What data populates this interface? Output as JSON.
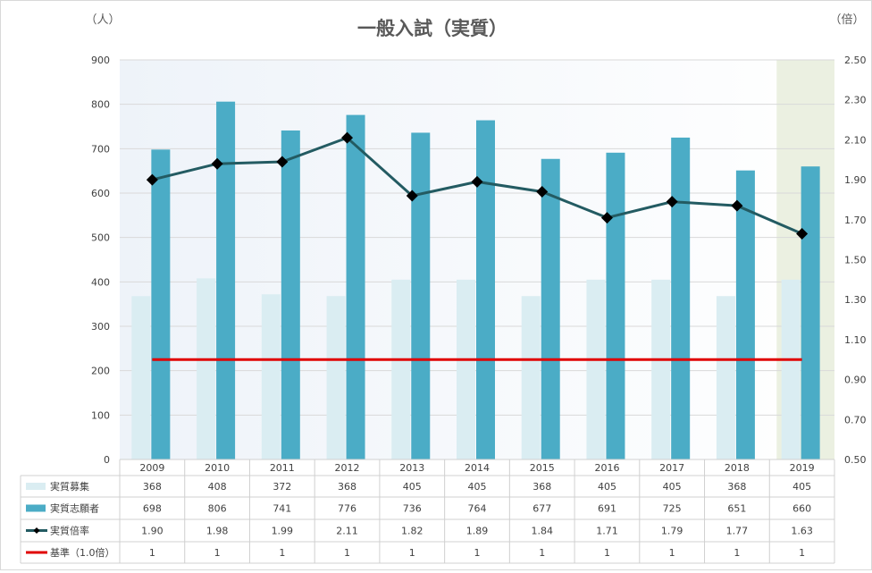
{
  "chart_data": {
    "type": "bar",
    "title": "一般入試（実質）",
    "left_unit": "（人）",
    "right_unit": "（倍）",
    "categories": [
      "2009",
      "2010",
      "2011",
      "2012",
      "2013",
      "2014",
      "2015",
      "2016",
      "2017",
      "2018",
      "2019"
    ],
    "ylim": [
      0,
      900
    ],
    "yticks": [
      "0",
      "100",
      "200",
      "300",
      "400",
      "500",
      "600",
      "700",
      "800",
      "900"
    ],
    "y2lim": [
      0.5,
      2.5
    ],
    "y2ticks": [
      "0.50",
      "0.70",
      "0.90",
      "1.10",
      "1.30",
      "1.50",
      "1.70",
      "1.90",
      "2.10",
      "2.30",
      "2.50"
    ],
    "highlight_category": "2019",
    "grid": true,
    "series": [
      {
        "name": "実質募集",
        "kind": "bar",
        "axis": "left",
        "color": "#daedf2",
        "values": [
          368,
          408,
          372,
          368,
          405,
          405,
          368,
          405,
          405,
          368,
          405
        ],
        "labels": [
          "368",
          "408",
          "372",
          "368",
          "405",
          "405",
          "368",
          "405",
          "405",
          "368",
          "405"
        ]
      },
      {
        "name": "実質志願者",
        "kind": "bar",
        "axis": "left",
        "color": "#4bacc6",
        "values": [
          698,
          806,
          741,
          776,
          736,
          764,
          677,
          691,
          725,
          651,
          660
        ],
        "labels": [
          "698",
          "806",
          "741",
          "776",
          "736",
          "764",
          "677",
          "691",
          "725",
          "651",
          "660"
        ]
      },
      {
        "name": "実質倍率",
        "kind": "line",
        "axis": "right",
        "color": "#235b62",
        "values": [
          1.9,
          1.98,
          1.99,
          2.11,
          1.82,
          1.89,
          1.84,
          1.71,
          1.79,
          1.77,
          1.63
        ],
        "labels": [
          "1.90",
          "1.98",
          "1.99",
          "2.11",
          "1.82",
          "1.89",
          "1.84",
          "1.71",
          "1.79",
          "1.77",
          "1.63"
        ]
      },
      {
        "name": "基準（1.0倍）",
        "kind": "line",
        "axis": "right",
        "color": "#e00000",
        "values": [
          1,
          1,
          1,
          1,
          1,
          1,
          1,
          1,
          1,
          1,
          1
        ],
        "labels": [
          "1",
          "1",
          "1",
          "1",
          "1",
          "1",
          "1",
          "1",
          "1",
          "1",
          "1"
        ]
      }
    ]
  }
}
